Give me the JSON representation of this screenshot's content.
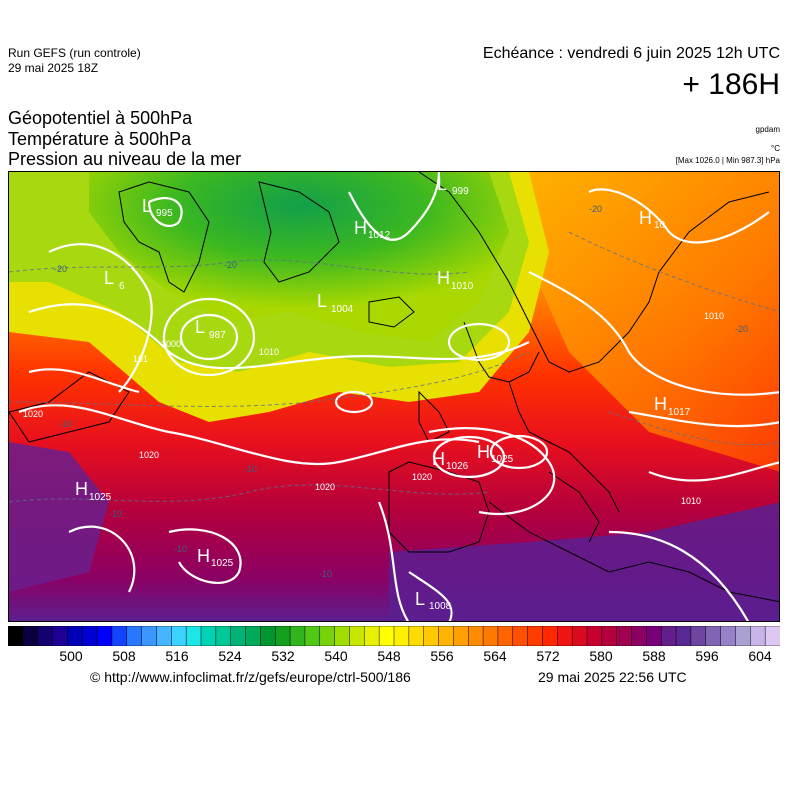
{
  "header": {
    "run_title": "Run GEFS (run controle)",
    "run_date": "29 mai 2025 18Z",
    "echeance": "Echéance : vendredi 6 juin 2025 12h UTC",
    "lead": "+ 186H"
  },
  "fields": [
    "Géopotentiel à 500hPa",
    "Température à 500hPa",
    "Pression au niveau de la mer"
  ],
  "units": {
    "geopotential": "gpdam",
    "temperature": "°C",
    "pressure_minmax": "[Max 1026.0 | Min 987.3] hPa"
  },
  "map": {
    "pressure_centers": [
      {
        "type": "L",
        "value": "995"
      },
      {
        "type": "L",
        "value": "999"
      },
      {
        "type": "H",
        "value": "1012"
      },
      {
        "type": "L",
        "value": "6"
      },
      {
        "type": "H",
        "value": "1010"
      },
      {
        "type": "L",
        "value": "1004"
      },
      {
        "type": "L",
        "value": "987"
      },
      {
        "type": "H",
        "value": "10"
      },
      {
        "type": "H",
        "value": "1017"
      },
      {
        "type": "H",
        "value": "1026"
      },
      {
        "type": "H",
        "value": "1025"
      },
      {
        "type": "H",
        "value": "1025"
      },
      {
        "type": "H",
        "value": "1025"
      },
      {
        "type": "L",
        "value": "1008"
      }
    ],
    "isobar_labels": [
      "1020",
      "1020",
      "1020",
      "1020",
      "1010",
      "1010",
      "1010",
      "101",
      "1000"
    ],
    "temperature_labels": [
      "-20",
      "-20",
      "-20",
      "-20",
      "-10",
      "-10",
      "-10",
      "-10",
      "-10"
    ],
    "colors": {
      "sea_cold": "#25b82a",
      "mid": "#ffd800",
      "warm": "#ff2000",
      "hot": "#9e0060",
      "very_hot": "#4c1488"
    }
  },
  "colorbar": {
    "ticks": [
      "500",
      "508",
      "516",
      "524",
      "532",
      "540",
      "548",
      "556",
      "564",
      "572",
      "580",
      "588",
      "596",
      "604"
    ],
    "min": 492,
    "max": 604,
    "colors": [
      "#000000",
      "#0a0040",
      "#14006e",
      "#1e0096",
      "#0000b4",
      "#0000d2",
      "#0000ff",
      "#1444ff",
      "#2878ff",
      "#3c96ff",
      "#46b4ff",
      "#3cd2ff",
      "#1ee6e6",
      "#00d2b4",
      "#00c896",
      "#00b478",
      "#00aa5a",
      "#009632",
      "#14a01e",
      "#32b41e",
      "#50c814",
      "#78d20a",
      "#a0dc00",
      "#c8e600",
      "#e6f000",
      "#ffff00",
      "#fff000",
      "#ffdc00",
      "#ffc800",
      "#ffb400",
      "#ffa000",
      "#ff8c00",
      "#ff7800",
      "#ff6400",
      "#ff5000",
      "#ff3c00",
      "#ff2800",
      "#f01414",
      "#dc0a1e",
      "#c80032",
      "#b4003c",
      "#a00050",
      "#8c0064",
      "#780078",
      "#641e8c",
      "#5a2896",
      "#6e46a0",
      "#8264b4",
      "#9682c8",
      "#aaa0d2",
      "#c8b4e6",
      "#dcc8f0"
    ]
  },
  "footer": {
    "url": "© http://www.infoclimat.fr/z/gefs/europe/ctrl-500/186",
    "generated": "29 mai 2025 22:56 UTC"
  }
}
